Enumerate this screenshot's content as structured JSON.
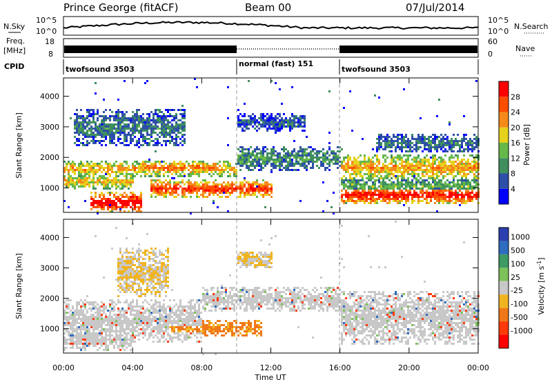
{
  "header": {
    "radar": "Prince George (fitACF)",
    "beam": "Beam 00",
    "date": "07/Jul/2014"
  },
  "panels": {
    "noise": {
      "left_label": "N.Sky",
      "right_label": "N.Search",
      "left_ticks": [
        "10^5",
        "10^0"
      ],
      "right_ticks": [
        "10^5",
        "10^0"
      ]
    },
    "freq": {
      "left_label_1": "Freq.",
      "left_label_2": "[MHz]",
      "right_label": "Nave",
      "left_ticks": [
        "18",
        "8"
      ],
      "right_ticks": [
        "60",
        "0"
      ]
    },
    "cpid": {
      "label": "CPID",
      "segments": [
        {
          "name": "twofsound 3503",
          "start": 0,
          "end": 10
        },
        {
          "name": "normal (fast) 151",
          "start": 10,
          "end": 16
        },
        {
          "name": "twofsound 3503",
          "start": 16,
          "end": 24
        }
      ]
    }
  },
  "axes": {
    "ylabel": "Slant Range [km]",
    "xlabel": "Time UT",
    "yticks": [
      "4000",
      "3000",
      "2000",
      "1000"
    ],
    "ytick_values": [
      4000,
      3000,
      2000,
      1000
    ],
    "ylim": [
      200,
      4600
    ],
    "xticks": [
      "00:00",
      "04:00",
      "08:00",
      "12:00",
      "16:00",
      "20:00",
      "00:00"
    ],
    "xtick_hours": [
      0,
      4,
      8,
      12,
      16,
      20,
      24
    ],
    "xlim": [
      0,
      24
    ]
  },
  "power_scale": {
    "label": "Power [dB]",
    "ticks": [
      "28",
      "24",
      "20",
      "16",
      "12",
      "8",
      "4"
    ],
    "colors": [
      "#0000ff",
      "#2e4fa8",
      "#3f8f5f",
      "#66b84a",
      "#e6d21c",
      "#f58a1b",
      "#ff4d00",
      "#ff0000"
    ]
  },
  "velocity_scale": {
    "label": "Velocity [m s",
    "label_sup": "-1",
    "label_end": "]",
    "ticks": [
      "1000",
      "500",
      "100",
      "25",
      "-25",
      "-100",
      "-500",
      "-1000"
    ],
    "colors": [
      "#2b3fb0",
      "#2e6cc0",
      "#3d9a63",
      "#7dc15a",
      "#c8c8c8",
      "#f0b420",
      "#f07818",
      "#ff3a0a",
      "#ff0000"
    ]
  },
  "chart_data": {
    "type": "heatmap",
    "title": "Prince George (fitACF) Beam 00 07/Jul/2014",
    "xlabel": "Time UT",
    "ylabel": "Slant Range [km]",
    "x_range_hours": [
      0,
      24
    ],
    "y_range_km": [
      200,
      4600
    ],
    "power_bands": [
      {
        "t0": 0.0,
        "t1": 10.0,
        "r_center": 1650,
        "r_width": 250,
        "db": 20
      },
      {
        "t0": 0.0,
        "t1": 4.0,
        "r_center": 1250,
        "r_width": 300,
        "db": 18
      },
      {
        "t0": 1.5,
        "t1": 4.5,
        "r_center": 550,
        "r_width": 350,
        "db": 30
      },
      {
        "t0": 5.0,
        "t1": 12.0,
        "r_center": 1000,
        "r_width": 300,
        "db": 26
      },
      {
        "t0": 4.5,
        "t1": 9.0,
        "r_center": 1700,
        "r_width": 250,
        "db": 22
      },
      {
        "t0": 10.0,
        "t1": 16.0,
        "r_center": 2000,
        "r_width": 400,
        "db": 10
      },
      {
        "t0": 16.0,
        "t1": 24.0,
        "r_center": 1700,
        "r_width": 450,
        "db": 20
      },
      {
        "t0": 16.0,
        "t1": 24.0,
        "r_center": 800,
        "r_width": 300,
        "db": 28
      },
      {
        "t0": 16.0,
        "t1": 24.0,
        "r_center": 1100,
        "r_width": 250,
        "db": 12
      },
      {
        "t0": 0.5,
        "t1": 7.0,
        "r_center": 3000,
        "r_width": 600,
        "db": 8
      },
      {
        "t0": 10.0,
        "t1": 14.0,
        "r_center": 3200,
        "r_width": 300,
        "db": 6
      },
      {
        "t0": 18.0,
        "t1": 24.0,
        "r_center": 2500,
        "r_width": 300,
        "db": 8
      }
    ],
    "velocity_bands": [
      {
        "t0": 0.0,
        "t1": 8.0,
        "r_center": 1300,
        "r_width": 700,
        "v": 0
      },
      {
        "t0": 0.0,
        "t1": 4.0,
        "r_center": 700,
        "r_width": 400,
        "v": 0
      },
      {
        "t0": 6.0,
        "t1": 11.5,
        "r_center": 1050,
        "r_width": 250,
        "v": -300
      },
      {
        "t0": 3.0,
        "t1": 6.0,
        "r_center": 2900,
        "r_width": 800,
        "v": -60
      },
      {
        "t0": 8.0,
        "t1": 16.0,
        "r_center": 2000,
        "r_width": 400,
        "v": 0
      },
      {
        "t0": 16.0,
        "t1": 24.0,
        "r_center": 1400,
        "r_width": 900,
        "v": 0
      },
      {
        "t0": 10.0,
        "t1": 12.0,
        "r_center": 3300,
        "r_width": 300,
        "v": -60
      }
    ]
  }
}
